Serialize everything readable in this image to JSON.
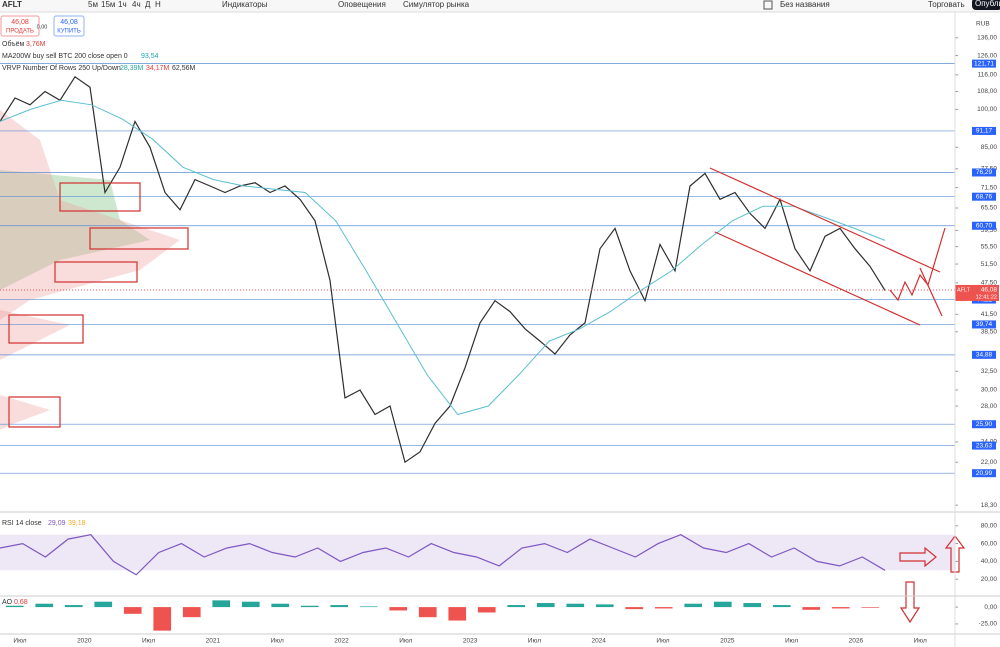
{
  "toolbar": {
    "symbol": "AFLT",
    "intervals": [
      "5м",
      "15м",
      "1ч",
      "4ч",
      "Д",
      "Н"
    ],
    "indicators": "Индикаторы",
    "alerts": "Оповещения",
    "replay": "Симулятор рынка",
    "layout_name": "Без названия",
    "trade": "Торговать",
    "publish": "Опублико"
  },
  "order_panel": {
    "sell_price": "46,08",
    "sell": "ПРОДАТЬ",
    "spread": "0,00",
    "buy_price": "46,08",
    "buy": "КУПИТЬ"
  },
  "legend": {
    "volume": "Объём",
    "volume_value": "3,76M",
    "ma": "MA200W buy sell BTC 200 close open 0",
    "ma_value": "93,54",
    "vrvp": "VRVP Number Of Rows 250 Up/Down",
    "vrvp_up": "28,39M",
    "vrvp_down": "34,17M",
    "vrvp_total": "62,56M",
    "rsi": "RSI 14 close",
    "rsi_value": "29,09",
    "rsi_ma": "39,18",
    "ao": "AO",
    "ao_value": "0,68"
  },
  "currency": "RUB",
  "time_labels": [
    "Июл",
    "2020",
    "Июл",
    "2021",
    "Июл",
    "2022",
    "Июл",
    "2023",
    "Июл",
    "2024",
    "Июл",
    "2025",
    "Июл",
    "2026",
    "Июл"
  ],
  "chart_data": [
    {
      "type": "line",
      "log_scale": true,
      "ylim": [
        18,
        140
      ],
      "yticks": [
        {
          "value": 136,
          "label": "136,00"
        },
        {
          "value": 126,
          "label": "126,00"
        },
        {
          "value": 116,
          "label": "116,00"
        },
        {
          "value": 108,
          "label": "108,00"
        },
        {
          "value": 100,
          "label": "100,00"
        },
        {
          "value": 85,
          "label": "85,00"
        },
        {
          "value": 77.5,
          "label": "77,50"
        },
        {
          "value": 71.5,
          "label": "71,50"
        },
        {
          "value": 65.5,
          "label": "65,50"
        },
        {
          "value": 59.5,
          "label": "59,50"
        },
        {
          "value": 55.5,
          "label": "55,50"
        },
        {
          "value": 51.5,
          "label": "51,50"
        },
        {
          "value": 47.5,
          "label": "47,50"
        },
        {
          "value": 41.5,
          "label": "41,50"
        },
        {
          "value": 38.5,
          "label": "38,50"
        },
        {
          "value": 32.5,
          "label": "32,50"
        },
        {
          "value": 30,
          "label": "30,00"
        },
        {
          "value": 28,
          "label": "28,00"
        },
        {
          "value": 24,
          "label": "24,00"
        },
        {
          "value": 22,
          "label": "22,00"
        },
        {
          "value": 18.3,
          "label": "18,30"
        }
      ],
      "levels": [
        {
          "value": 121.71,
          "label": "121,71"
        },
        {
          "value": 91.17,
          "label": "91,17"
        },
        {
          "value": 76.29,
          "label": "76,29"
        },
        {
          "value": 68.76,
          "label": "68,76"
        },
        {
          "value": 60.7,
          "label": "60,70"
        },
        {
          "value": 44.22,
          "label": "44,22"
        },
        {
          "value": 39.74,
          "label": "39,74"
        },
        {
          "value": 34.88,
          "label": "34,88"
        },
        {
          "value": 25.9,
          "label": "25,90"
        },
        {
          "value": 23.63,
          "label": "23,63"
        },
        {
          "value": 20.99,
          "label": "20,99"
        }
      ],
      "current": {
        "ticker": "AFLT",
        "value": 46.08,
        "label": "46,08",
        "time": "12:41:22"
      },
      "series": [
        {
          "name": "AFLT",
          "color": "#2e2e2e",
          "values": [
            95,
            105,
            102,
            108,
            104,
            115,
            110,
            70,
            78,
            95,
            85,
            70,
            65,
            74,
            72,
            70,
            72,
            73,
            70,
            72,
            68,
            62,
            48,
            29,
            30,
            27,
            28,
            22,
            23,
            26,
            28,
            33,
            40,
            44,
            42,
            39,
            37,
            35,
            38,
            40,
            55,
            60,
            50,
            44,
            56,
            50,
            72,
            76,
            68,
            70,
            64,
            60,
            68,
            55,
            50,
            58,
            60,
            55,
            51,
            46
          ]
        },
        {
          "name": "MA200W",
          "color": "#5bbfd0",
          "values": [
            95,
            100,
            104,
            102,
            96,
            88,
            78,
            74,
            72,
            71,
            70,
            62,
            50,
            40,
            32,
            27,
            28,
            32,
            37,
            39,
            42,
            46,
            50,
            56,
            62,
            66,
            66,
            63,
            60,
            57
          ]
        }
      ]
    },
    {
      "type": "line",
      "ylim": [
        0,
        100
      ],
      "yticks": [
        {
          "value": 80,
          "label": "80,00"
        },
        {
          "value": 60,
          "label": "60,00"
        },
        {
          "value": 40,
          "label": "40,00"
        },
        {
          "value": 20,
          "label": "20,00"
        }
      ],
      "band": [
        30,
        70
      ],
      "series": [
        {
          "name": "RSI",
          "color": "#7e57c2",
          "values": [
            55,
            60,
            45,
            65,
            70,
            40,
            25,
            50,
            60,
            45,
            55,
            60,
            50,
            45,
            55,
            40,
            50,
            55,
            45,
            60,
            50,
            45,
            35,
            55,
            60,
            50,
            65,
            55,
            45,
            60,
            70,
            55,
            50,
            60,
            45,
            55,
            40,
            35,
            45,
            30
          ]
        }
      ]
    },
    {
      "type": "bar",
      "ylim": [
        -40,
        15
      ],
      "yticks": [
        {
          "value": 0,
          "label": "0,00"
        },
        {
          "value": -25,
          "label": "-25,00"
        }
      ],
      "colors": {
        "up": "#26a69a",
        "down": "#ef5350"
      },
      "values": [
        2,
        5,
        3,
        8,
        -10,
        -35,
        -15,
        10,
        8,
        5,
        2,
        3,
        1,
        -5,
        -15,
        -20,
        -8,
        3,
        6,
        5,
        4,
        -3,
        -2,
        5,
        8,
        6,
        3,
        -4,
        -2,
        -1
      ]
    }
  ]
}
